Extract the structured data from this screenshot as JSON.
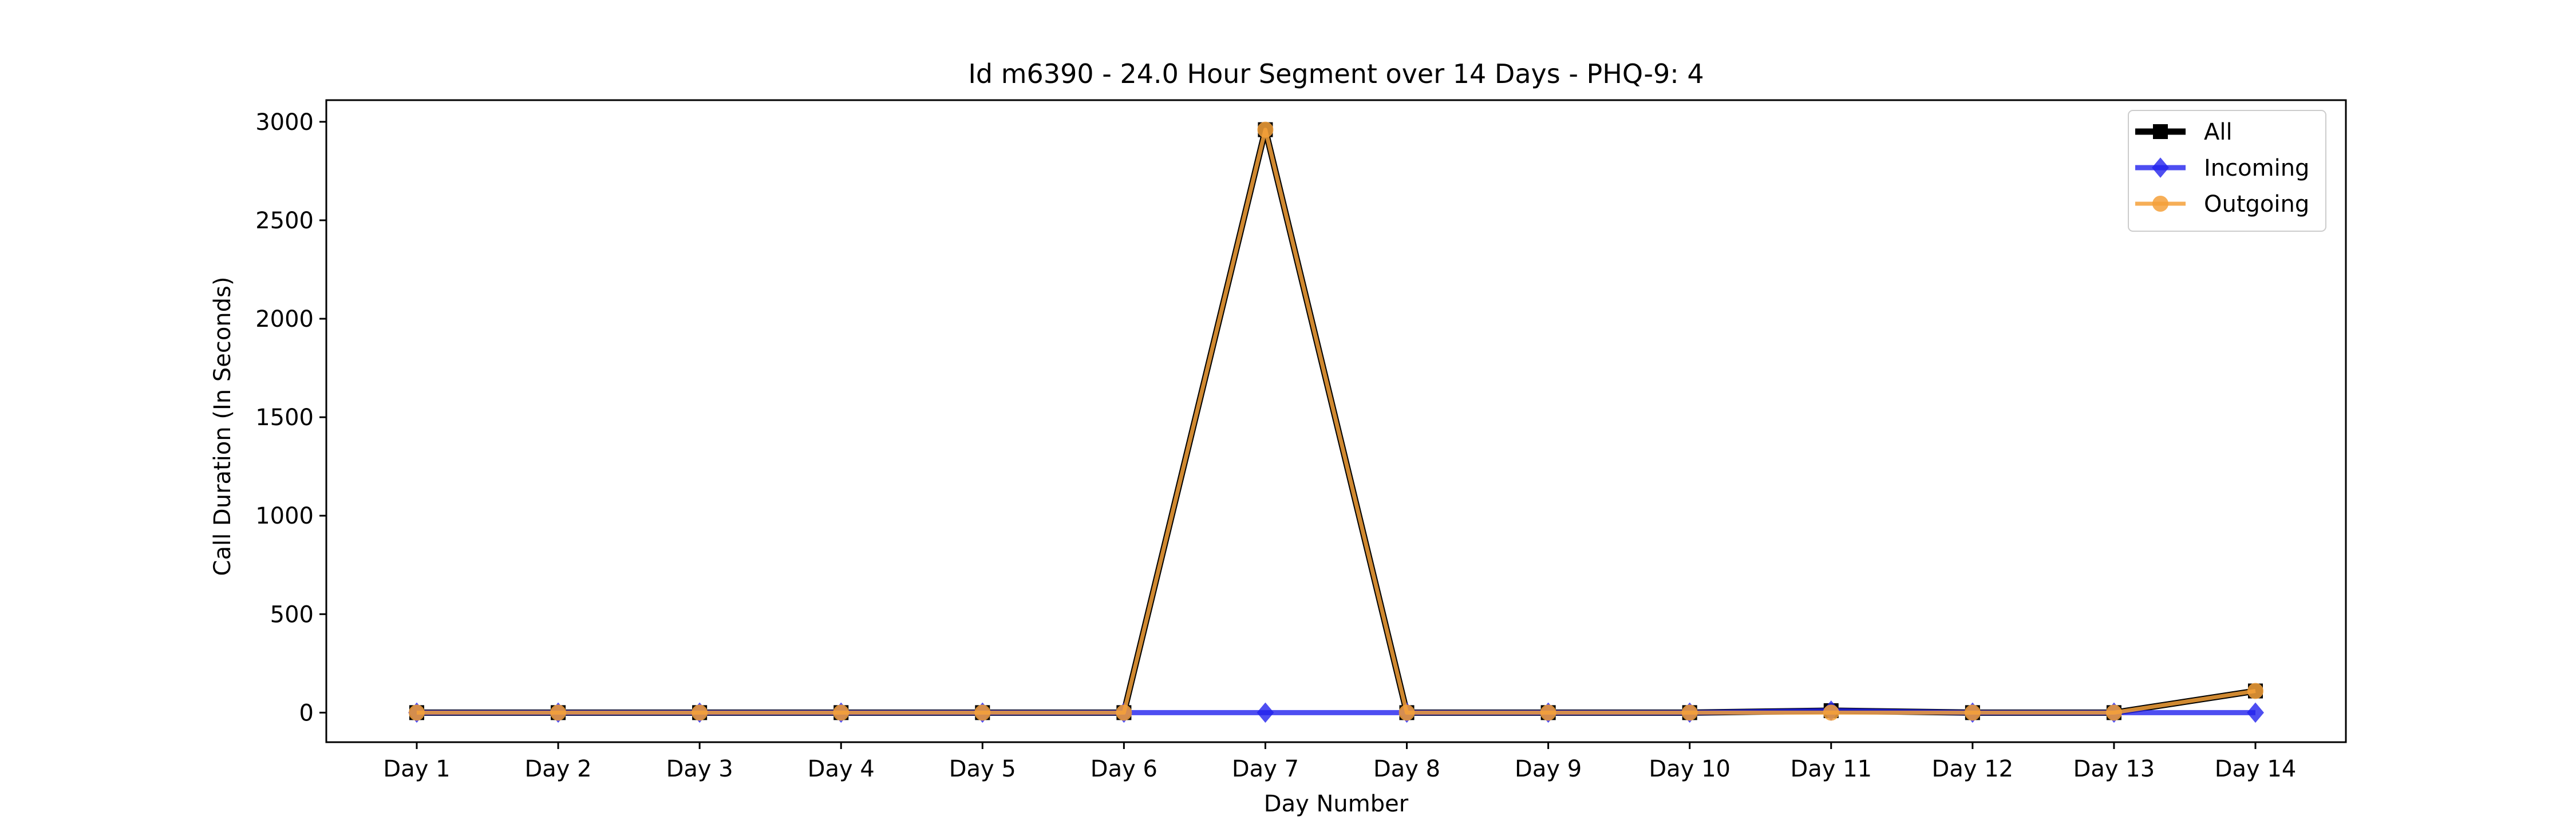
{
  "chart_data": {
    "type": "line",
    "title": "Id m6390 - 24.0 Hour Segment over 14 Days - PHQ-9: 4",
    "xlabel": "Day Number",
    "ylabel": "Call Duration (In Seconds)",
    "categories": [
      "Day 1",
      "Day 2",
      "Day 3",
      "Day 4",
      "Day 5",
      "Day 6",
      "Day 7",
      "Day 8",
      "Day 9",
      "Day 10",
      "Day 11",
      "Day 12",
      "Day 13",
      "Day 14"
    ],
    "ylim": [
      -150,
      3110
    ],
    "yticks": [
      0,
      500,
      1000,
      1500,
      2000,
      2500,
      3000
    ],
    "grid": false,
    "legend_position": "top-right",
    "series": [
      {
        "name": "All",
        "color": "#000000",
        "marker": "square",
        "values": [
          0,
          0,
          0,
          0,
          0,
          0,
          2960,
          0,
          0,
          0,
          10,
          0,
          0,
          110
        ]
      },
      {
        "name": "Incoming",
        "color": "#2222ee",
        "marker": "diamond",
        "values": [
          0,
          0,
          0,
          0,
          0,
          0,
          0,
          0,
          0,
          0,
          10,
          0,
          0,
          0
        ]
      },
      {
        "name": "Outgoing",
        "color": "#f5a13a",
        "marker": "circle",
        "values": [
          0,
          0,
          0,
          0,
          0,
          0,
          2960,
          0,
          0,
          0,
          0,
          0,
          0,
          110
        ]
      }
    ]
  }
}
